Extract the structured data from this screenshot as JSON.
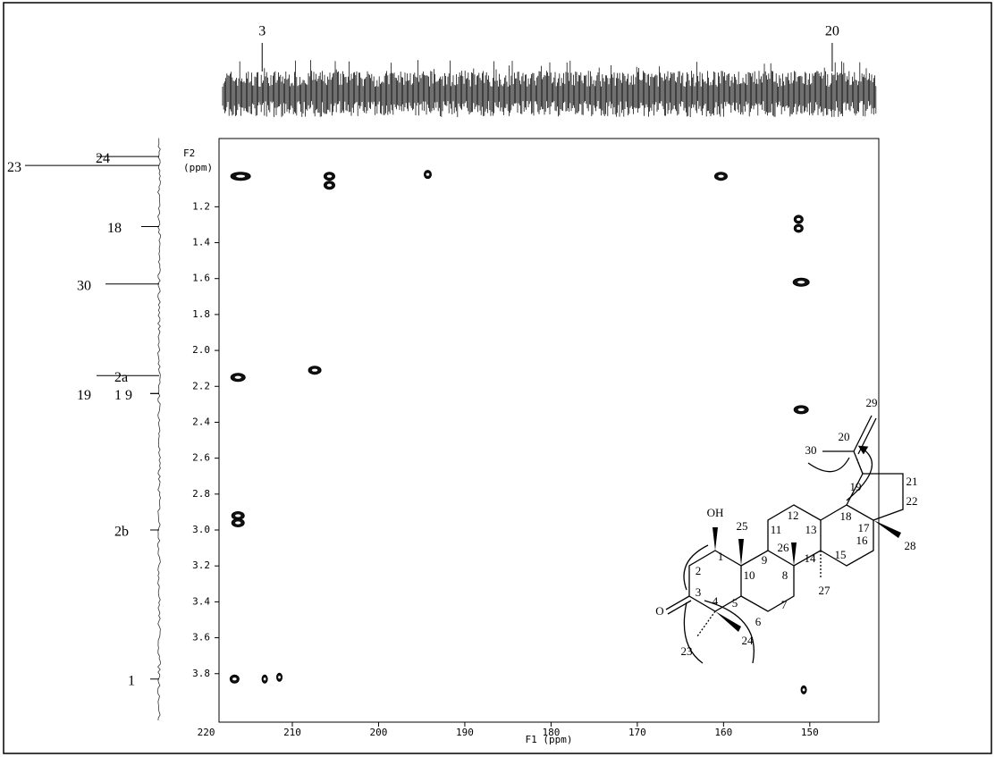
{
  "chart_data": {
    "type": "scatter",
    "xlabel": "F1 (ppm)",
    "ylabel_lines": [
      "F2",
      "(ppm)"
    ],
    "xlim": [
      218.5,
      142
    ],
    "ylim": [
      0.82,
      4.07
    ],
    "xticks": [
      220,
      210,
      200,
      190,
      180,
      170,
      160,
      150
    ],
    "yticks": [
      1.2,
      1.4,
      1.6,
      1.8,
      {
        "value": 2,
        "label": "2.0"
      },
      2.2,
      2.4,
      2.6,
      2.8,
      {
        "value": 3,
        "label": "3.0"
      },
      3.2,
      3.4,
      3.6,
      3.8
    ],
    "color": "#111111",
    "x": [
      216,
      205.7,
      205.7,
      194.3,
      160.3,
      151.3,
      151.3,
      151,
      216.3,
      207.4,
      151,
      216.3,
      216.3,
      216.7,
      213.2,
      211.5,
      150.7
    ],
    "y": [
      1.03,
      1.03,
      1.08,
      1.02,
      1.03,
      1.27,
      1.32,
      1.62,
      2.15,
      2.11,
      2.33,
      2.92,
      2.96,
      3.83,
      3.83,
      3.82,
      3.89
    ],
    "f1_projection_peaks": [
      {
        "label": "3",
        "ppm": 213.5
      },
      {
        "label": "20",
        "ppm": 147.4
      }
    ],
    "f2_projection_peaks": [
      {
        "label": "23",
        "ppm": 0.97
      },
      {
        "label": "24",
        "ppm": 0.92
      },
      {
        "label": "18",
        "ppm": 1.31
      },
      {
        "label": "30",
        "ppm": 1.63
      },
      {
        "label": "2a",
        "ppm": 2.14
      },
      {
        "label": "19",
        "ppm": 2.24
      },
      {
        "label": "1 9",
        "ppm": 2.24
      },
      {
        "label": "2b",
        "ppm": 3.0
      },
      {
        "label": "1",
        "ppm": 3.83
      }
    ]
  },
  "structure": {
    "labels": [
      "OH",
      "O",
      "1",
      "2",
      "3",
      "4",
      "5",
      "6",
      "7",
      "8",
      "9",
      "10",
      "11",
      "12",
      "13",
      "14",
      "15",
      "16",
      "17",
      "18",
      "19",
      "20",
      "21",
      "22",
      "23",
      "24",
      "25",
      "26",
      "27",
      "28",
      "29",
      "30"
    ]
  }
}
